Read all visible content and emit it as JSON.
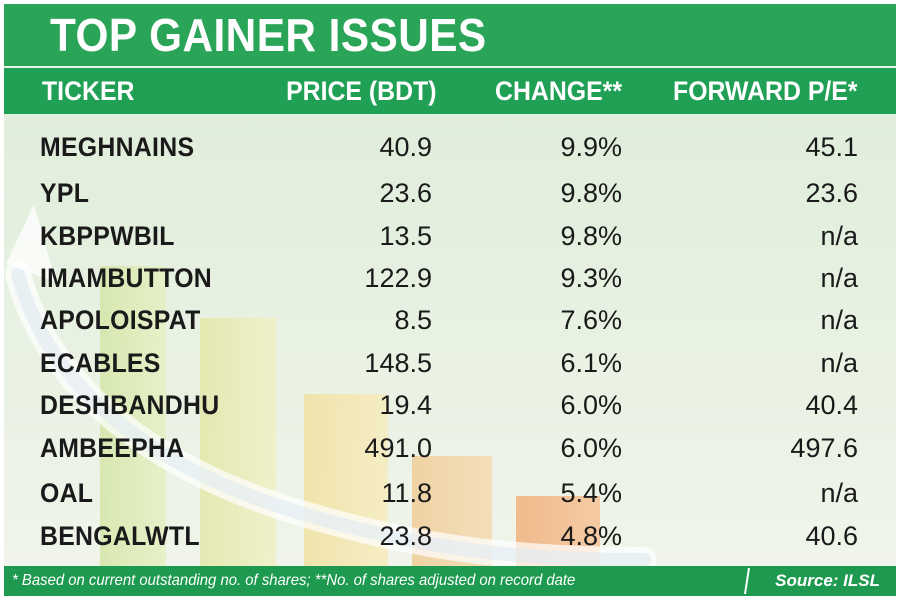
{
  "title": "TOP GAINER ISSUES",
  "columns": {
    "ticker": "TICKER",
    "price": "PRICE (BDT)",
    "change": "CHANGE**",
    "pe": "FORWARD P/E*"
  },
  "rows": [
    {
      "ticker": "MEGHNAINS",
      "price": "40.9",
      "change": "9.9%",
      "pe": "45.1"
    },
    {
      "ticker": "YPL",
      "price": "23.6",
      "change": "9.8%",
      "pe": "23.6"
    },
    {
      "ticker": "KBPPWBIL",
      "price": "13.5",
      "change": "9.8%",
      "pe": "n/a"
    },
    {
      "ticker": "IMAMBUTTON",
      "price": "122.9",
      "change": "9.3%",
      "pe": "n/a"
    },
    {
      "ticker": "APOLOISPAT",
      "price": "8.5",
      "change": "7.6%",
      "pe": "n/a"
    },
    {
      "ticker": "ECABLES",
      "price": "148.5",
      "change": "6.1%",
      "pe": "n/a"
    },
    {
      "ticker": "DESHBANDHU",
      "price": "19.4",
      "change": "6.0%",
      "pe": "40.4"
    },
    {
      "ticker": "AMBEEPHA",
      "price": "491.0",
      "change": "6.0%",
      "pe": "497.6"
    },
    {
      "ticker": "OAL",
      "price": "11.8",
      "change": "5.4%",
      "pe": "n/a"
    },
    {
      "ticker": "BENGALWTL",
      "price": "23.8",
      "change": "4.8%",
      "pe": "40.6"
    }
  ],
  "footer": {
    "note": "* Based on current outstanding no. of shares; **No. of shares adjusted on record date",
    "source": "Source: ILSL"
  },
  "colors": {
    "title_bg": "#2aa558",
    "header_bg": "#20a055",
    "footer_bg": "#1e9a50",
    "body_bg": "#e4efdd"
  }
}
